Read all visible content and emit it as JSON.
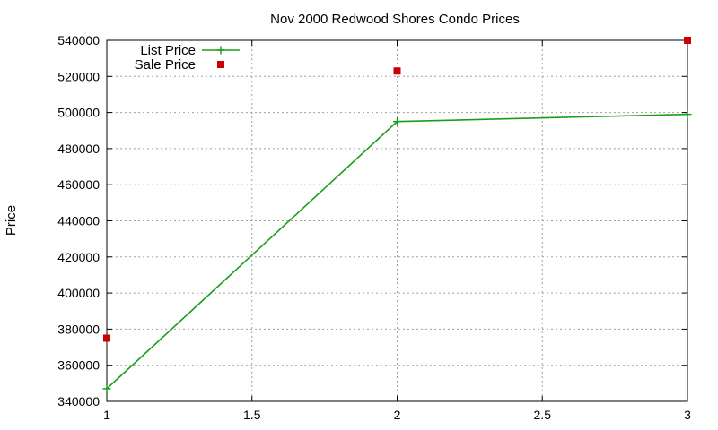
{
  "chart_data": {
    "type": "line",
    "title": "Nov 2000 Redwood Shores Condo Prices",
    "xlabel": "",
    "ylabel": "Price",
    "xlim": [
      1,
      3
    ],
    "ylim": [
      340000,
      540000
    ],
    "x_ticks": [
      1,
      1.5,
      2,
      2.5,
      3
    ],
    "x_tick_labels": [
      "1",
      "1.5",
      "2",
      "2.5",
      "3"
    ],
    "y_ticks": [
      340000,
      360000,
      380000,
      400000,
      420000,
      440000,
      460000,
      480000,
      500000,
      520000,
      540000
    ],
    "y_tick_labels": [
      "340000",
      "360000",
      "380000",
      "400000",
      "420000",
      "440000",
      "460000",
      "480000",
      "500000",
      "520000",
      "540000"
    ],
    "grid": true,
    "legend_position": "top-left",
    "series": [
      {
        "name": "List Price",
        "style": "linespoints",
        "marker": "plus",
        "color": "#1a9e1a",
        "x": [
          1,
          2,
          3
        ],
        "y": [
          347000,
          495000,
          499000
        ]
      },
      {
        "name": "Sale Price",
        "style": "points",
        "marker": "square",
        "color": "#cc0000",
        "x": [
          1,
          2,
          3
        ],
        "y": [
          375000,
          523000,
          540000
        ]
      }
    ]
  }
}
